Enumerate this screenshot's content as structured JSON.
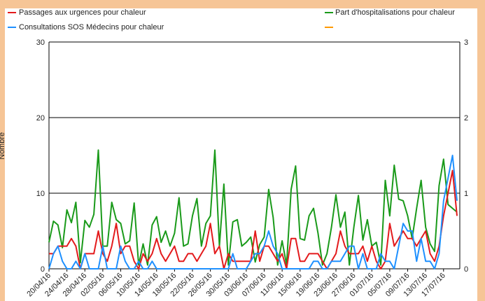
{
  "chart_data": {
    "type": "line",
    "title": "",
    "xlabel": "",
    "ylabel": "Nombre",
    "ylim": [
      0,
      30
    ],
    "y2lim": [
      0,
      3
    ],
    "y_ticks": [
      "0",
      "10",
      "20",
      "30"
    ],
    "y2_ticks": [
      "0",
      "1",
      "2",
      "3"
    ],
    "grid": "horizontal",
    "legend_position": "top",
    "x_tick_labels": [
      "20/04/16",
      "24/04/16",
      "28/04/16",
      "02/05/16",
      "06/05/16",
      "10/05/16",
      "14/05/16",
      "18/05/16",
      "22/05/16",
      "26/05/16",
      "30/05/16",
      "03/06/16",
      "07/06/16",
      "11/06/16",
      "15/06/16",
      "19/06/16",
      "23/06/16",
      "27/06/16",
      "01/07/16",
      "05/07/16",
      "09/07/16",
      "13/07/16",
      "17/07/16"
    ],
    "series": [
      {
        "name": "Passages aux urgences pour chaleur",
        "color": "#e31a1c",
        "axis": "left",
        "values": [
          2,
          2,
          3,
          3,
          3,
          4,
          3,
          0,
          2,
          2,
          2,
          5,
          2,
          1,
          3,
          6,
          2,
          3,
          3,
          1,
          0,
          2,
          1,
          2,
          4,
          2,
          1,
          2,
          3,
          1,
          1,
          2,
          2,
          1,
          2,
          3,
          6,
          2,
          3,
          0,
          2,
          1,
          1,
          1,
          1,
          1,
          5,
          1,
          3,
          3,
          2,
          1,
          2,
          0,
          4,
          4,
          1,
          1,
          2,
          2,
          2,
          1,
          0,
          1,
          2,
          5,
          3,
          2,
          2,
          2,
          3,
          1,
          3,
          1,
          0,
          1,
          6,
          3,
          4,
          5,
          4,
          4,
          3,
          4,
          5,
          2,
          1,
          3,
          7,
          10,
          13,
          7
        ]
      },
      {
        "name": "Consultations SOS Médecins pour chaleur",
        "color": "#1e90ff",
        "axis": "left",
        "values": [
          0,
          2,
          3,
          1,
          0,
          0,
          1,
          0,
          2,
          0,
          0,
          0,
          3,
          0,
          0,
          0,
          3,
          1,
          0,
          0,
          1,
          0,
          0,
          1,
          0,
          0,
          0,
          0,
          0,
          0,
          0,
          0,
          0,
          0,
          0,
          0,
          0,
          0,
          0,
          0,
          0,
          2,
          0,
          0,
          0,
          1,
          2,
          2,
          3,
          5,
          3,
          2,
          0,
          0,
          0,
          0,
          0,
          0,
          0,
          1,
          1,
          0,
          0,
          1,
          1,
          1,
          2,
          3,
          3,
          0,
          2,
          0,
          0,
          0,
          2,
          1,
          1,
          0,
          3,
          6,
          5,
          5,
          1,
          4,
          1,
          1,
          0,
          2,
          9,
          12,
          15,
          9
        ]
      },
      {
        "name": "Part d'hospitalisations pour chaleur",
        "color": "#1a9a1a",
        "axis": "right",
        "values": [
          0.35,
          0.63,
          0.58,
          0.28,
          0.78,
          0.61,
          0.88,
          0.08,
          0.64,
          0.55,
          0.72,
          1.57,
          0.3,
          0.3,
          0.88,
          0.65,
          0.6,
          0.33,
          0.37,
          0.87,
          0.05,
          0.33,
          0.05,
          0.58,
          0.69,
          0.35,
          0.5,
          0.3,
          0.47,
          0.94,
          0.3,
          0.33,
          0.7,
          0.93,
          0.3,
          0.6,
          0.7,
          1.57,
          0.3,
          1.12,
          0.05,
          0.62,
          0.65,
          0.3,
          0.35,
          0.42,
          0.09,
          0.32,
          0.42,
          1.05,
          0.68,
          0.05,
          0.37,
          0.05,
          1.05,
          1.36,
          0.4,
          0.38,
          0.7,
          0.8,
          0.47,
          0.05,
          0.2,
          0.55,
          0.98,
          0.55,
          0.75,
          0.05,
          0.55,
          0.97,
          0.38,
          0.65,
          0.3,
          0.35,
          0.05,
          1.17,
          0.7,
          1.37,
          0.92,
          0.9,
          0.7,
          0.4,
          0.8,
          1.17,
          0.55,
          0.33,
          0.23,
          1.1,
          1.45,
          0.85,
          0.8,
          0.75
        ]
      },
      {
        "name": "",
        "color": "#ff9900",
        "axis": "right",
        "values": []
      }
    ]
  }
}
